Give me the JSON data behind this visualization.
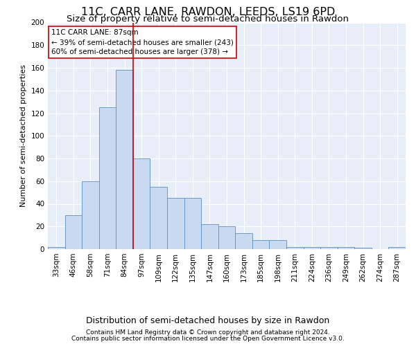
{
  "title": "11C, CARR LANE, RAWDON, LEEDS, LS19 6PD",
  "subtitle": "Size of property relative to semi-detached houses in Rawdon",
  "xlabel": "Distribution of semi-detached houses by size in Rawdon",
  "ylabel": "Number of semi-detached properties",
  "categories": [
    "33sqm",
    "46sqm",
    "58sqm",
    "71sqm",
    "84sqm",
    "97sqm",
    "109sqm",
    "122sqm",
    "135sqm",
    "147sqm",
    "160sqm",
    "173sqm",
    "185sqm",
    "198sqm",
    "211sqm",
    "224sqm",
    "236sqm",
    "249sqm",
    "262sqm",
    "274sqm",
    "287sqm"
  ],
  "values": [
    2,
    30,
    60,
    125,
    158,
    80,
    55,
    45,
    45,
    22,
    20,
    14,
    8,
    8,
    2,
    2,
    2,
    2,
    1,
    0,
    2
  ],
  "bar_color": "#c8d9f0",
  "bar_edge_color": "#5b8fc9",
  "vline_x_index": 4.5,
  "vline_color": "#cc0000",
  "annotation_text": "11C CARR LANE: 87sqm\n← 39% of semi-detached houses are smaller (243)\n60% of semi-detached houses are larger (378) →",
  "annotation_box_color": "#ffffff",
  "annotation_box_edge": "#cc0000",
  "ylim": [
    0,
    200
  ],
  "yticks": [
    0,
    20,
    40,
    60,
    80,
    100,
    120,
    140,
    160,
    180,
    200
  ],
  "footer1": "Contains HM Land Registry data © Crown copyright and database right 2024.",
  "footer2": "Contains public sector information licensed under the Open Government Licence v3.0.",
  "background_color": "#e8eef8",
  "grid_color": "#ffffff",
  "title_fontsize": 11.5,
  "subtitle_fontsize": 9.5,
  "ylabel_fontsize": 8,
  "xlabel_fontsize": 9,
  "tick_fontsize": 7.5,
  "annotation_fontsize": 7.5,
  "footer_fontsize": 6.5
}
